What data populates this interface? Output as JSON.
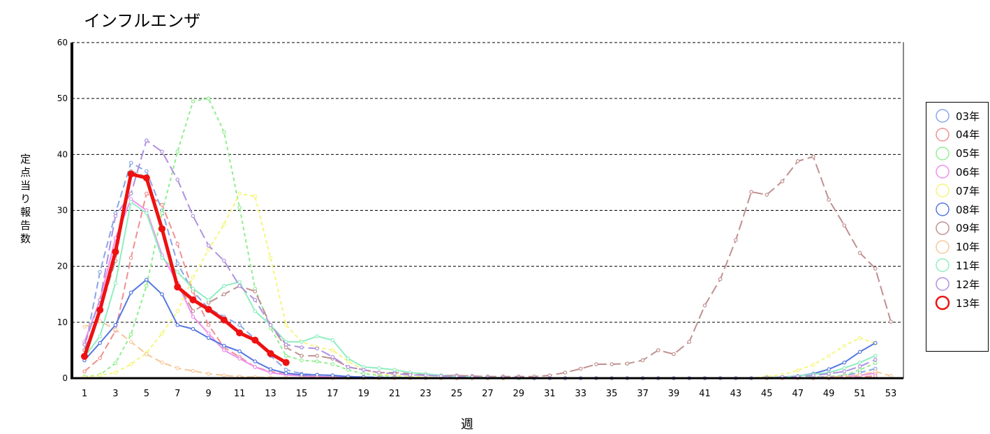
{
  "chart_data": {
    "type": "line",
    "title": "インフルエンザ",
    "xlabel": "週",
    "ylabel": "定点当り報告数",
    "xlim": [
      1,
      53
    ],
    "ylim": [
      0,
      60
    ],
    "y_ticks": [
      0,
      10,
      20,
      30,
      40,
      50,
      60
    ],
    "x_ticks": [
      1,
      3,
      5,
      7,
      9,
      11,
      13,
      15,
      17,
      19,
      21,
      23,
      25,
      27,
      29,
      31,
      33,
      35,
      37,
      39,
      41,
      43,
      45,
      47,
      49,
      51,
      53
    ],
    "grid": "horizontal dashed",
    "legend_position": "right",
    "series": [
      {
        "name": "03年",
        "color": "#8aa6e6",
        "dash": "10,5",
        "width": 2,
        "x": [
          1,
          2,
          3,
          4,
          5,
          6,
          7,
          8,
          9,
          10,
          11,
          12,
          13,
          14,
          15,
          16,
          17,
          18,
          19,
          20,
          21,
          22,
          23,
          24,
          25,
          26,
          27,
          28,
          29,
          30,
          31,
          32,
          33,
          34,
          35,
          36,
          37,
          38,
          39,
          40,
          41,
          42,
          43,
          44,
          45,
          46,
          47,
          48,
          49,
          50,
          51,
          52
        ],
        "y": [
          5,
          19,
          29.5,
          38.5,
          37,
          30,
          20.5,
          15.5,
          12.5,
          11,
          9.5,
          7,
          4,
          1.5,
          0.8,
          0.6,
          0.5,
          0.3,
          0.2,
          0.2,
          0.1,
          0.1,
          0.1,
          0.1,
          0.1,
          0.1,
          0,
          0,
          0,
          0,
          0,
          0,
          0,
          0,
          0,
          0,
          0,
          0,
          0,
          0,
          0,
          0,
          0,
          0,
          0,
          0,
          0.1,
          0.2,
          0.3,
          0.5,
          1,
          1.7
        ]
      },
      {
        "name": "04年",
        "color": "#f09090",
        "dash": "10,5",
        "width": 2,
        "x": [
          1,
          2,
          3,
          4,
          5,
          6,
          7,
          8,
          9,
          10,
          11,
          12,
          13,
          14,
          15,
          16,
          17,
          18,
          19,
          20,
          21,
          22,
          23,
          24,
          25,
          26,
          27,
          28,
          29,
          30,
          31,
          32,
          33,
          34,
          35,
          36,
          37,
          38,
          39,
          40,
          41,
          42,
          43,
          44,
          45,
          46,
          47,
          48,
          49,
          50,
          51,
          52
        ],
        "y": [
          1.2,
          3.6,
          8.5,
          21.5,
          33,
          31,
          24,
          15.5,
          9.5,
          5.5,
          3.8,
          2,
          1.2,
          0.7,
          0.4,
          0.3,
          0.2,
          0.1,
          0.1,
          0.1,
          0.1,
          0.1,
          0,
          0,
          0,
          0,
          0,
          0,
          0,
          0,
          0,
          0,
          0,
          0,
          0,
          0,
          0,
          0,
          0,
          0,
          0,
          0,
          0,
          0,
          0,
          0,
          0,
          0,
          0,
          0.1,
          0.2,
          0.4
        ]
      },
      {
        "name": "05年",
        "color": "#90ee90",
        "dash": "5,4",
        "width": 2,
        "x": [
          1,
          2,
          3,
          4,
          5,
          6,
          7,
          8,
          9,
          10,
          11,
          12,
          13,
          14,
          15,
          16,
          17,
          18,
          19,
          20,
          21,
          22,
          23,
          24,
          25,
          26,
          27,
          28,
          29,
          30,
          31,
          32,
          33,
          34,
          35,
          36,
          37,
          38,
          39,
          40,
          41,
          42,
          43,
          44,
          45,
          46,
          47,
          48,
          49,
          50,
          51,
          52
        ],
        "y": [
          0.3,
          0.6,
          2.7,
          7.8,
          16.5,
          29.5,
          40.5,
          49.5,
          50,
          44,
          30.5,
          16,
          9,
          4,
          3.2,
          3,
          2.5,
          1.5,
          0.8,
          0.5,
          0.3,
          0.2,
          0.1,
          0.1,
          0.1,
          0,
          0,
          0,
          0,
          0,
          0,
          0,
          0,
          0,
          0,
          0,
          0,
          0,
          0,
          0,
          0,
          0,
          0,
          0,
          0,
          0,
          0.1,
          0.2,
          0.3,
          0.5,
          1.5,
          2.7
        ]
      },
      {
        "name": "06年",
        "color": "#ee90ee",
        "dash": "",
        "width": 2,
        "x": [
          1,
          2,
          3,
          4,
          5,
          6,
          7,
          8,
          9,
          10,
          11,
          12,
          13,
          14,
          15,
          16,
          17,
          18,
          19,
          20,
          21,
          22,
          23,
          24,
          25,
          26,
          27,
          28,
          29,
          30,
          31,
          32,
          33,
          34,
          35,
          36,
          37,
          38,
          39,
          40,
          41,
          42,
          43,
          44,
          45,
          46,
          47,
          48,
          49,
          50,
          51,
          52
        ],
        "y": [
          6.5,
          14,
          25,
          32,
          30,
          22,
          17,
          11,
          8,
          5,
          3.5,
          2,
          1,
          0.6,
          0.4,
          0.3,
          0.2,
          0.1,
          0.1,
          0.1,
          0.1,
          0,
          0,
          0,
          0,
          0,
          0,
          0,
          0,
          0,
          0,
          0,
          0,
          0,
          0,
          0,
          0,
          0,
          0,
          0,
          0,
          0,
          0,
          0,
          0,
          0,
          0,
          0.1,
          0.2,
          0.3,
          0.5,
          0.9
        ]
      },
      {
        "name": "07年",
        "color": "#f5f57a",
        "dash": "5,4",
        "width": 2,
        "x": [
          1,
          2,
          3,
          4,
          5,
          6,
          7,
          8,
          9,
          10,
          11,
          12,
          13,
          14,
          15,
          16,
          17,
          18,
          19,
          20,
          21,
          22,
          23,
          24,
          25,
          26,
          27,
          28,
          29,
          30,
          31,
          32,
          33,
          34,
          35,
          36,
          37,
          38,
          39,
          40,
          41,
          42,
          43,
          44,
          45,
          46,
          47,
          48,
          49,
          50,
          51,
          52
        ],
        "y": [
          0.2,
          0.5,
          1,
          2.5,
          4.5,
          8,
          12,
          18,
          23,
          27.5,
          33,
          32.5,
          21.5,
          9.5,
          6.5,
          5.5,
          5,
          3,
          1.5,
          0.8,
          0.5,
          0.3,
          0.2,
          0.1,
          0.1,
          0,
          0,
          0,
          0,
          0,
          0,
          0,
          0,
          0,
          0,
          0,
          0,
          0,
          0,
          0,
          0,
          0,
          0,
          0,
          0.3,
          0.6,
          1.4,
          2.4,
          4,
          5.8,
          7.2,
          6.2
        ]
      },
      {
        "name": "08年",
        "color": "#5577e0",
        "dash": "",
        "width": 2,
        "x": [
          1,
          2,
          3,
          4,
          5,
          6,
          7,
          8,
          9,
          10,
          11,
          12,
          13,
          14,
          15,
          16,
          17,
          18,
          19,
          20,
          21,
          22,
          23,
          24,
          25,
          26,
          27,
          28,
          29,
          30,
          31,
          32,
          33,
          34,
          35,
          36,
          37,
          38,
          39,
          40,
          41,
          42,
          43,
          44,
          45,
          46,
          47,
          48,
          49,
          50,
          51,
          52
        ],
        "y": [
          3.2,
          6.3,
          9.5,
          15.3,
          17.6,
          15,
          9.5,
          8.8,
          7.2,
          5.8,
          4.8,
          3,
          1.6,
          0.9,
          0.6,
          0.6,
          0.5,
          0.3,
          0.2,
          0.1,
          0.1,
          0.1,
          0,
          0,
          0,
          0,
          0,
          0,
          0,
          0,
          0,
          0,
          0,
          0,
          0,
          0,
          0,
          0,
          0,
          0,
          0,
          0,
          0,
          0,
          0.1,
          0.2,
          0.4,
          0.8,
          1.6,
          2.8,
          4.7,
          6.3
        ]
      },
      {
        "name": "09年",
        "color": "#c09090",
        "dash": "14,6",
        "width": 2,
        "x": [
          1,
          2,
          3,
          4,
          5,
          6,
          7,
          8,
          9,
          10,
          11,
          12,
          13,
          14,
          15,
          16,
          17,
          18,
          19,
          20,
          21,
          22,
          23,
          24,
          25,
          26,
          27,
          28,
          29,
          30,
          31,
          32,
          33,
          34,
          35,
          36,
          37,
          38,
          39,
          40,
          41,
          42,
          43,
          44,
          45,
          46,
          47,
          48,
          49,
          50,
          51,
          52,
          53
        ],
        "y": [
          5,
          12,
          21,
          37,
          36,
          26.5,
          17,
          12,
          13.5,
          15,
          16.5,
          15.5,
          9.5,
          5.5,
          4,
          4,
          3.5,
          2,
          1.5,
          1,
          1,
          0.8,
          0.6,
          0.5,
          0.5,
          0.4,
          0.3,
          0.3,
          0.3,
          0.3,
          0.5,
          1,
          1.7,
          2.5,
          2.5,
          2.6,
          3.2,
          5,
          4.3,
          6.5,
          13,
          17.7,
          24.7,
          33.3,
          32.8,
          35.2,
          38.8,
          39.6,
          31.9,
          27.3,
          22.4,
          19.6,
          10.1
        ]
      },
      {
        "name": "10年",
        "color": "#f5c89a",
        "dash": "10,5",
        "width": 2,
        "x": [
          1,
          2,
          3,
          4,
          5,
          6,
          7,
          8,
          9,
          10,
          11,
          12,
          13,
          14,
          15,
          16,
          17,
          18,
          19,
          20,
          21,
          22,
          23,
          24,
          25,
          26,
          27,
          28,
          29,
          30,
          31,
          32,
          33,
          34,
          35,
          36,
          37,
          38,
          39,
          40,
          41,
          42,
          43,
          44,
          45,
          46,
          47,
          48,
          49,
          50,
          51,
          52,
          53
        ],
        "y": [
          9.2,
          10.2,
          8.7,
          6.5,
          4.3,
          2.8,
          1.8,
          1.3,
          0.8,
          0.5,
          0.3,
          0.2,
          0.1,
          0.1,
          0.1,
          0.1,
          0,
          0,
          0,
          0,
          0,
          0,
          0,
          0,
          0,
          0,
          0,
          0,
          0,
          0,
          0,
          0,
          0,
          0,
          0,
          0,
          0,
          0,
          0,
          0,
          0,
          0,
          0,
          0,
          0,
          0,
          0,
          0.1,
          0.2,
          0.3,
          0.6,
          1.2,
          0.4
        ]
      },
      {
        "name": "11年",
        "color": "#90eec0",
        "dash": "",
        "width": 2,
        "x": [
          1,
          2,
          3,
          4,
          5,
          6,
          7,
          8,
          9,
          10,
          11,
          12,
          13,
          14,
          15,
          16,
          17,
          18,
          19,
          20,
          21,
          22,
          23,
          24,
          25,
          26,
          27,
          28,
          29,
          30,
          31,
          32,
          33,
          34,
          35,
          36,
          37,
          38,
          39,
          40,
          41,
          42,
          43,
          44,
          45,
          46,
          47,
          48,
          49,
          50,
          51,
          52
        ],
        "y": [
          3.8,
          7.5,
          17,
          31.5,
          29.5,
          21.5,
          19,
          16,
          14,
          16.5,
          17.2,
          12,
          9.5,
          6.5,
          6.5,
          7.5,
          6.8,
          3.5,
          2,
          1.8,
          1.5,
          1,
          0.8,
          0.5,
          0.3,
          0.2,
          0.1,
          0.1,
          0,
          0,
          0,
          0,
          0,
          0,
          0,
          0,
          0,
          0,
          0,
          0,
          0,
          0,
          0,
          0,
          0.1,
          0.2,
          0.4,
          0.7,
          1,
          1.8,
          2.8,
          4
        ]
      },
      {
        "name": "12年",
        "color": "#b090e0",
        "dash": "14,6",
        "width": 2,
        "x": [
          1,
          2,
          3,
          4,
          5,
          6,
          7,
          8,
          9,
          10,
          11,
          12,
          13,
          14,
          15,
          16,
          17,
          18,
          19,
          20,
          21,
          22,
          23,
          24,
          25,
          26,
          27,
          28,
          29,
          30,
          31,
          32,
          33,
          34,
          35,
          36,
          37,
          38,
          39,
          40,
          41,
          42,
          43,
          44,
          45,
          46,
          47,
          48,
          49,
          50,
          51,
          52
        ],
        "y": [
          6,
          14,
          29,
          33,
          42.5,
          40.5,
          35.5,
          29,
          23.7,
          21,
          16.5,
          14,
          9.5,
          6,
          5.5,
          5.3,
          3.8,
          2,
          1.5,
          1,
          0.8,
          0.6,
          0.5,
          0.4,
          0.3,
          0.2,
          0.1,
          0.1,
          0.1,
          0,
          0,
          0,
          0,
          0,
          0,
          0,
          0,
          0,
          0,
          0,
          0,
          0,
          0,
          0,
          0.1,
          0.2,
          0.3,
          0.5,
          0.8,
          1.2,
          2.1,
          3.3
        ]
      },
      {
        "name": "13年",
        "color": "#ee1111",
        "dash": "",
        "width": 5,
        "x": [
          1,
          2,
          3,
          4,
          5,
          6,
          7,
          8,
          9,
          10,
          11,
          12,
          13,
          14
        ],
        "y": [
          3.9,
          12.2,
          22.6,
          36.5,
          35.8,
          26.7,
          16.3,
          14,
          12.3,
          10.4,
          8.1,
          6.8,
          4.4,
          2.8
        ]
      }
    ]
  }
}
